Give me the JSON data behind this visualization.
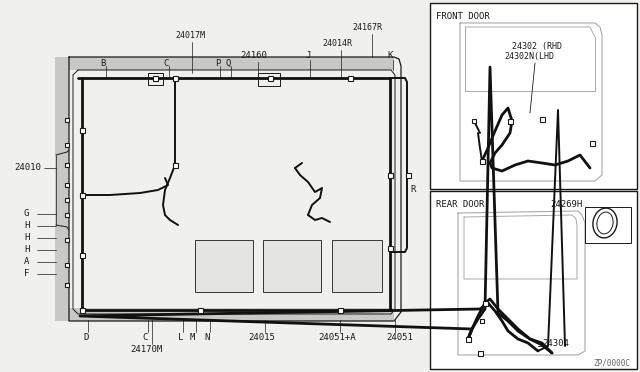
{
  "bg_color": "#f0f0ec",
  "line_color": "#1a1a1a",
  "light_line_color": "#aaaaaa",
  "wire_color": "#111111",
  "copyright": "ZP/0000C",
  "front_door_label": "FRONT DOOR",
  "rear_door_label": "REAR DOOR",
  "part_24302": "24302 (RHD",
  "part_24302N": "24302N(LHD",
  "part_24304": "24304",
  "part_24269H": "24269H"
}
